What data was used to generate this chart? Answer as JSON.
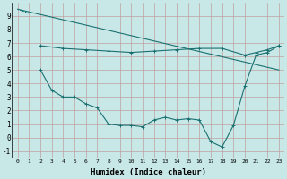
{
  "background_color": "#c8e8e8",
  "grid_color": "#c0a0a0",
  "line_color": "#1a7070",
  "xlabel": "Humidex (Indice chaleur)",
  "ylim": [
    -1.5,
    10.0
  ],
  "xlim": [
    -0.5,
    23.5
  ],
  "yticks": [
    -1,
    0,
    1,
    2,
    3,
    4,
    5,
    6,
    7,
    8,
    9
  ],
  "xticks": [
    0,
    1,
    2,
    3,
    4,
    5,
    6,
    7,
    8,
    9,
    10,
    11,
    12,
    13,
    14,
    15,
    16,
    17,
    18,
    19,
    20,
    21,
    22,
    23
  ],
  "lines": [
    {
      "x": [
        0,
        1
      ],
      "y": [
        9.5,
        9.2
      ],
      "style": ":",
      "marker": null,
      "lw": 0.8
    },
    {
      "x": [
        2,
        4,
        6,
        8,
        10,
        12,
        14,
        16,
        18,
        20,
        21,
        22,
        23
      ],
      "y": [
        6.8,
        6.6,
        6.5,
        6.4,
        6.3,
        6.4,
        6.5,
        6.6,
        6.6,
        6.1,
        6.3,
        6.5,
        6.8
      ],
      "style": "-",
      "marker": "+",
      "lw": 0.8
    },
    {
      "x": [
        0,
        23
      ],
      "y": [
        9.5,
        5.0
      ],
      "style": "-",
      "marker": null,
      "lw": 0.8
    },
    {
      "x": [
        2,
        3,
        4,
        5,
        6,
        7,
        8,
        9,
        10,
        11,
        12,
        13,
        14,
        15,
        16,
        17,
        18,
        19,
        20,
        21,
        22,
        23
      ],
      "y": [
        5.0,
        3.5,
        3.0,
        3.0,
        2.5,
        2.2,
        1.0,
        0.9,
        0.9,
        0.8,
        1.3,
        1.5,
        1.3,
        1.4,
        1.3,
        -0.3,
        -0.7,
        0.9,
        3.8,
        6.1,
        6.3,
        6.8
      ],
      "style": "-",
      "marker": "+",
      "lw": 0.8
    }
  ]
}
